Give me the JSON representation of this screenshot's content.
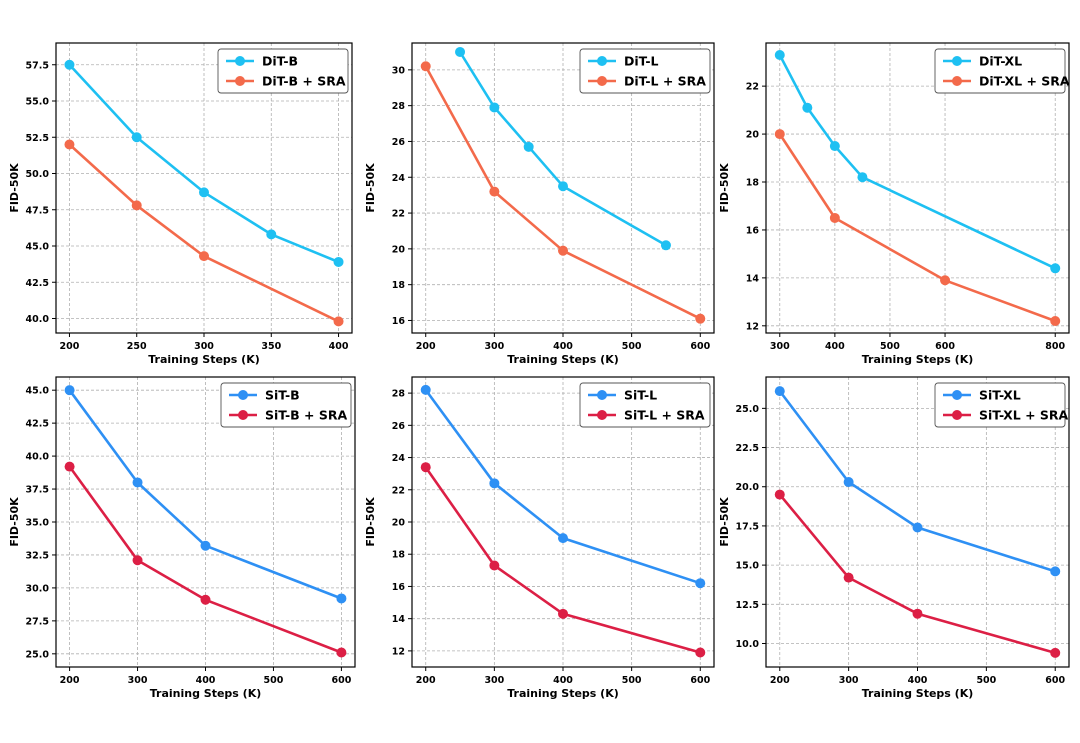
{
  "chart_data": [
    {
      "type": "line",
      "xlabel": "Training Steps (K)",
      "ylabel": "FID-50K",
      "xlim": [
        190,
        410
      ],
      "ylim": [
        39.0,
        59.0
      ],
      "xticks": [
        "200",
        "250",
        "300",
        "350",
        "400"
      ],
      "yticks": [
        "40.0",
        "42.5",
        "45.0",
        "47.5",
        "50.0",
        "52.5",
        "55.0",
        "57.5"
      ],
      "grid": true,
      "legend_position": "top-right",
      "series": [
        {
          "name": "DiT-B",
          "color": "#1ec0f2",
          "x": [
            200,
            250,
            300,
            350,
            400
          ],
          "y": [
            57.5,
            52.5,
            48.7,
            45.8,
            43.9
          ]
        },
        {
          "name": "DiT-B + SRA",
          "color": "#f36a4b",
          "x": [
            200,
            250,
            300,
            400
          ],
          "y": [
            52.0,
            47.8,
            44.3,
            39.8
          ]
        }
      ]
    },
    {
      "type": "line",
      "xlabel": "Training Steps (K)",
      "ylabel": "FID-50K",
      "xlim": [
        180,
        620
      ],
      "ylim": [
        15.3,
        31.5
      ],
      "xticks": [
        "200",
        "300",
        "400",
        "500",
        "600"
      ],
      "yticks": [
        "16",
        "18",
        "20",
        "22",
        "24",
        "26",
        "28",
        "30"
      ],
      "grid": true,
      "legend_position": "top-right",
      "series": [
        {
          "name": "DiT-L",
          "color": "#1ec0f2",
          "x": [
            250,
            300,
            350,
            400,
            550
          ],
          "y": [
            31.0,
            27.9,
            25.7,
            23.5,
            20.2
          ]
        },
        {
          "name": "DiT-L + SRA",
          "color": "#f36a4b",
          "x": [
            200,
            300,
            400,
            600
          ],
          "y": [
            30.2,
            23.2,
            19.9,
            16.1
          ]
        }
      ]
    },
    {
      "type": "line",
      "xlabel": "Training Steps (K)",
      "ylabel": "FID-50K",
      "xlim": [
        275,
        825
      ],
      "ylim": [
        11.7,
        23.8
      ],
      "xticks": [
        "300",
        "400",
        "500",
        "600",
        "800"
      ],
      "yticks": [
        "12",
        "14",
        "16",
        "18",
        "20",
        "22"
      ],
      "grid": true,
      "legend_position": "top-right",
      "series": [
        {
          "name": "DiT-XL",
          "color": "#1ec0f2",
          "x": [
            300,
            350,
            400,
            450,
            800
          ],
          "y": [
            23.3,
            21.1,
            19.5,
            18.2,
            14.4
          ]
        },
        {
          "name": "DiT-XL + SRA",
          "color": "#f36a4b",
          "x": [
            300,
            400,
            600,
            800
          ],
          "y": [
            20.0,
            16.5,
            13.9,
            12.2
          ]
        }
      ]
    },
    {
      "type": "line",
      "xlabel": "Training Steps (K)",
      "ylabel": "FID-50K",
      "xlim": [
        180,
        620
      ],
      "ylim": [
        24.0,
        46.0
      ],
      "xticks": [
        "200",
        "300",
        "400",
        "500",
        "600"
      ],
      "yticks": [
        "25.0",
        "27.5",
        "30.0",
        "32.5",
        "35.0",
        "37.5",
        "40.0",
        "42.5",
        "45.0"
      ],
      "grid": true,
      "legend_position": "top-right",
      "series": [
        {
          "name": "SiT-B",
          "color": "#2e90f4",
          "x": [
            200,
            300,
            400,
            600
          ],
          "y": [
            45.0,
            38.0,
            33.2,
            29.2
          ]
        },
        {
          "name": "SiT-B + SRA",
          "color": "#dc1f45",
          "x": [
            200,
            300,
            400,
            600
          ],
          "y": [
            39.2,
            32.1,
            29.1,
            25.1
          ]
        }
      ]
    },
    {
      "type": "line",
      "xlabel": "Training Steps (K)",
      "ylabel": "FID-50K",
      "xlim": [
        180,
        620
      ],
      "ylim": [
        11.0,
        29.0
      ],
      "xticks": [
        "200",
        "300",
        "400",
        "500",
        "600"
      ],
      "yticks": [
        "12",
        "14",
        "16",
        "18",
        "20",
        "22",
        "24",
        "26",
        "28"
      ],
      "grid": true,
      "legend_position": "top-right",
      "series": [
        {
          "name": "SiT-L",
          "color": "#2e90f4",
          "x": [
            200,
            300,
            400,
            600
          ],
          "y": [
            28.2,
            22.4,
            19.0,
            16.2
          ]
        },
        {
          "name": "SiT-L + SRA",
          "color": "#dc1f45",
          "x": [
            200,
            300,
            400,
            600
          ],
          "y": [
            23.4,
            17.3,
            14.3,
            11.9
          ]
        }
      ]
    },
    {
      "type": "line",
      "xlabel": "Training Steps (K)",
      "ylabel": "FID-50K",
      "xlim": [
        180,
        620
      ],
      "ylim": [
        8.5,
        27.0
      ],
      "xticks": [
        "200",
        "300",
        "400",
        "500",
        "600"
      ],
      "yticks": [
        "10.0",
        "12.5",
        "15.0",
        "17.5",
        "20.0",
        "22.5",
        "25.0"
      ],
      "grid": true,
      "legend_position": "top-right",
      "series": [
        {
          "name": "SiT-XL",
          "color": "#2e90f4",
          "x": [
            200,
            300,
            400,
            600
          ],
          "y": [
            26.1,
            20.3,
            17.4,
            14.6
          ]
        },
        {
          "name": "SiT-XL + SRA",
          "color": "#dc1f45",
          "x": [
            200,
            300,
            400,
            600
          ],
          "y": [
            19.5,
            14.2,
            11.9,
            9.4
          ]
        }
      ]
    }
  ]
}
